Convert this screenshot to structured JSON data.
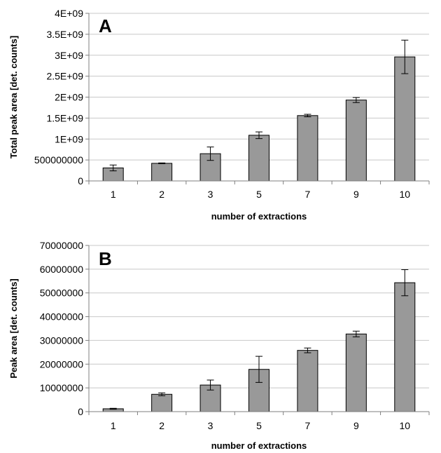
{
  "colors": {
    "bar": "#999999"
  },
  "chart_data": [
    {
      "type": "bar",
      "panel_label": "A",
      "categories": [
        "1",
        "2",
        "3",
        "5",
        "7",
        "9",
        "10"
      ],
      "values": [
        310000000,
        420000000,
        650000000,
        1090000000,
        1560000000,
        1930000000,
        2960000000
      ],
      "errors": [
        70000000,
        10000000,
        160000000,
        80000000,
        30000000,
        60000000,
        400000000
      ],
      "ylim": [
        0,
        4000000000
      ],
      "yticks": [
        0,
        500000000,
        1000000000,
        1500000000,
        2000000000,
        2500000000,
        3000000000,
        3500000000,
        4000000000
      ],
      "ytick_labels": [
        "0",
        "500000000",
        "1E+09",
        "1.5E+09",
        "2E+09",
        "2.5E+09",
        "3E+09",
        "3.5E+09",
        "4E+09"
      ],
      "xlabel": "number of extractions",
      "ylabel": "Total peak area [det. counts]",
      "grid": true
    },
    {
      "type": "bar",
      "panel_label": "B",
      "categories": [
        "1",
        "2",
        "3",
        "5",
        "7",
        "9",
        "10"
      ],
      "values": [
        1200000,
        7300000,
        11200000,
        17800000,
        25800000,
        32700000,
        54300000
      ],
      "errors": [
        200000,
        600000,
        2100000,
        5500000,
        1000000,
        1200000,
        5500000
      ],
      "ylim": [
        0,
        70000000
      ],
      "yticks": [
        0,
        10000000,
        20000000,
        30000000,
        40000000,
        50000000,
        60000000,
        70000000
      ],
      "ytick_labels": [
        "0",
        "10000000",
        "20000000",
        "30000000",
        "40000000",
        "50000000",
        "60000000",
        "70000000"
      ],
      "xlabel": "number of extractions",
      "ylabel": "Peak area [det. counts]",
      "grid": true
    }
  ]
}
